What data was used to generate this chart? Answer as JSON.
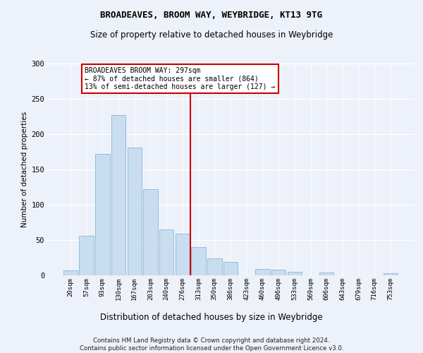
{
  "title1": "BROADEAVES, BROOM WAY, WEYBRIDGE, KT13 9TG",
  "title2": "Size of property relative to detached houses in Weybridge",
  "xlabel": "Distribution of detached houses by size in Weybridge",
  "ylabel": "Number of detached properties",
  "categories": [
    "20sqm",
    "57sqm",
    "93sqm",
    "130sqm",
    "167sqm",
    "203sqm",
    "240sqm",
    "276sqm",
    "313sqm",
    "350sqm",
    "386sqm",
    "423sqm",
    "460sqm",
    "496sqm",
    "533sqm",
    "569sqm",
    "606sqm",
    "643sqm",
    "679sqm",
    "716sqm",
    "753sqm"
  ],
  "values": [
    7,
    56,
    172,
    227,
    181,
    122,
    65,
    59,
    40,
    24,
    19,
    0,
    9,
    8,
    5,
    0,
    4,
    0,
    0,
    0,
    3
  ],
  "bar_color": "#c9ddf0",
  "bar_edge_color": "#8ab4d8",
  "vline_color": "#cc0000",
  "annotation_line1": "BROADEAVES BROOM WAY: 297sqm",
  "annotation_line2": "← 87% of detached houses are smaller (864)",
  "annotation_line3": "13% of semi-detached houses are larger (127) →",
  "annotation_box_color": "#ffffff",
  "annotation_box_edge_color": "#cc0000",
  "footer": "Contains HM Land Registry data © Crown copyright and database right 2024.\nContains public sector information licensed under the Open Government Licence v3.0.",
  "bg_color": "#edf1f9",
  "grid_color": "#ffffff",
  "ylim": [
    0,
    300
  ],
  "yticks": [
    0,
    50,
    100,
    150,
    200,
    250,
    300
  ]
}
